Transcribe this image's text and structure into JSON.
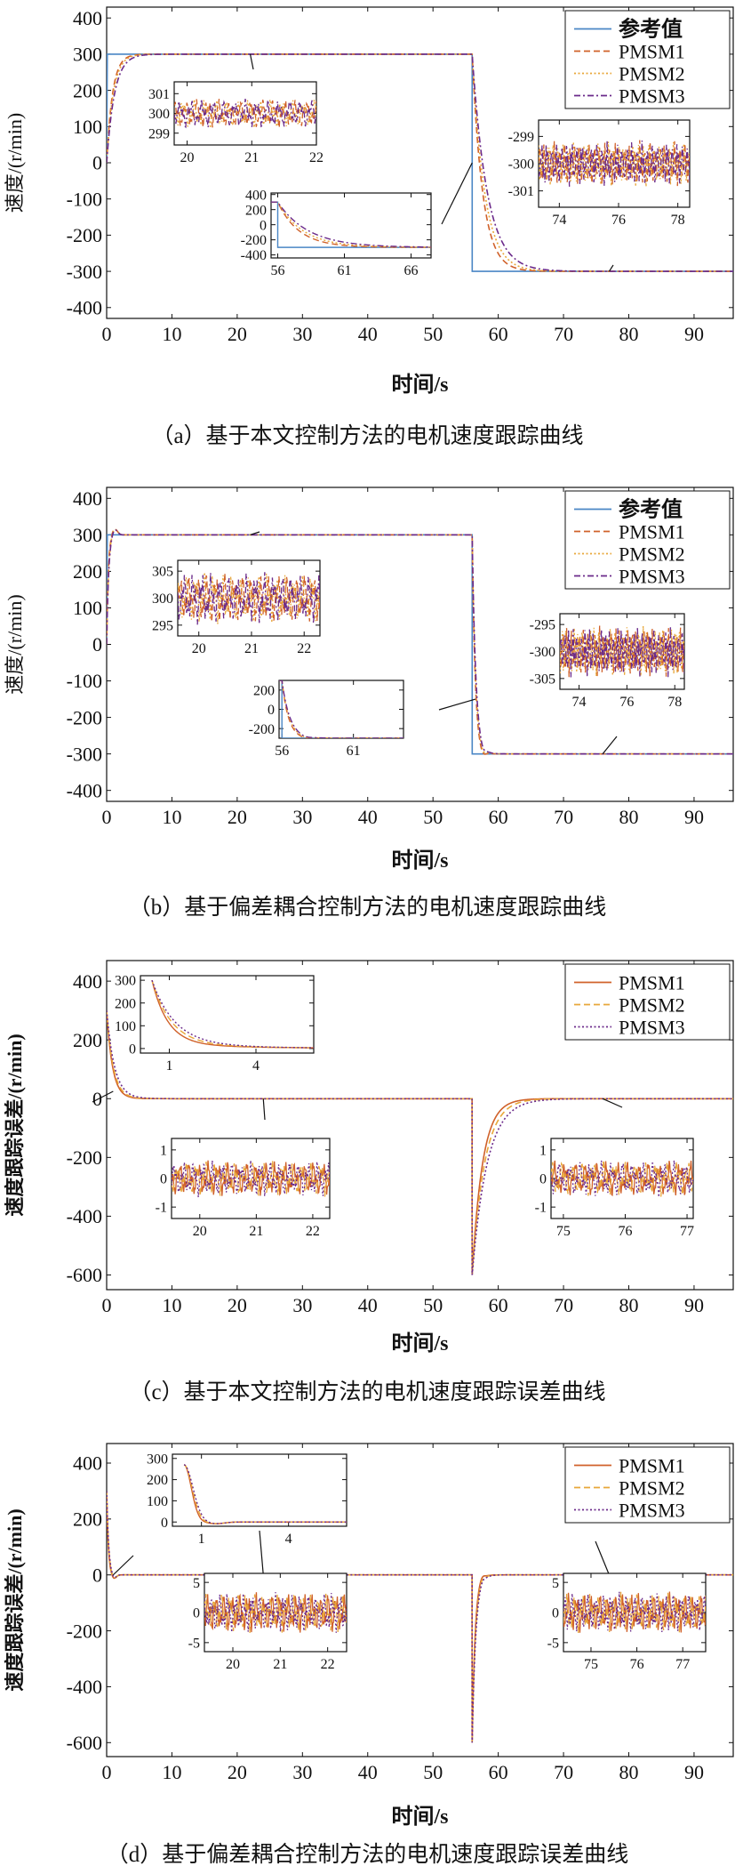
{
  "colors": {
    "ref": "#4a86c5",
    "pmsm1": "#d0612a",
    "pmsm2": "#e8a73a",
    "pmsm3": "#6b2a8a",
    "axis": "#111111"
  },
  "chart_data": [
    {
      "id": "a",
      "type": "line",
      "caption": "（a）基于本文控制方法的电机速度跟踪曲线",
      "xlabel": "时间/s",
      "ylabel": "速度/(r/min)",
      "xlim": [
        0,
        96
      ],
      "ylim": [
        -430,
        430
      ],
      "xticks": [
        0,
        10,
        20,
        30,
        40,
        50,
        60,
        70,
        80,
        90
      ],
      "yticks": [
        -400,
        -300,
        -200,
        -100,
        0,
        100,
        200,
        300,
        400
      ],
      "legend": {
        "position": "top-right",
        "entries": [
          "参考值",
          "PMSM1",
          "PMSM2",
          "PMSM3"
        ]
      },
      "series": [
        {
          "name": "参考值",
          "kind": "ref",
          "style": "solid",
          "x": [
            0,
            0.1,
            56,
            56.01,
            96
          ],
          "y": [
            0,
            300,
            300,
            -300,
            -300
          ]
        },
        {
          "name": "PMSM1",
          "kind": "exp",
          "style": "dash",
          "tau1": 0.9,
          "tau2": 1.6,
          "y0": 0,
          "y1": 300,
          "y2": -300,
          "t2": 56
        },
        {
          "name": "PMSM2",
          "kind": "exp",
          "style": "dot",
          "tau1": 1.0,
          "tau2": 1.9,
          "y0": 0,
          "y1": 300,
          "y2": -300,
          "t2": 56
        },
        {
          "name": "PMSM3",
          "kind": "exp",
          "style": "dashdot",
          "tau1": 1.2,
          "tau2": 2.3,
          "y0": 0,
          "y1": 300,
          "y2": -300,
          "t2": 56
        }
      ],
      "insets": [
        {
          "xlim": [
            19.8,
            22
          ],
          "ylim": [
            298.4,
            301.6
          ],
          "xticks": [
            20,
            21,
            22
          ],
          "yticks": [
            299,
            300,
            301
          ],
          "kind": "noise",
          "center": 300,
          "amp": 0.7
        },
        {
          "xlim": [
            55.5,
            67.5
          ],
          "ylim": [
            -440,
            420
          ],
          "xticks": [
            56,
            61,
            66
          ],
          "yticks": [
            -400,
            -200,
            0,
            200,
            400
          ],
          "kind": "drop"
        },
        {
          "xlim": [
            73.3,
            78.4
          ],
          "ylim": [
            -301.6,
            -298.4
          ],
          "xticks": [
            74,
            76,
            78
          ],
          "yticks": [
            -299,
            -300,
            -301
          ],
          "kind": "noise",
          "center": -300,
          "amp": 0.8
        }
      ]
    },
    {
      "id": "b",
      "type": "line",
      "caption": "（b）基于偏差耦合控制方法的电机速度跟踪曲线",
      "xlabel": "时间/s",
      "ylabel": "速度/(r/min)",
      "xlim": [
        0,
        96
      ],
      "ylim": [
        -430,
        430
      ],
      "xticks": [
        0,
        10,
        20,
        30,
        40,
        50,
        60,
        70,
        80,
        90
      ],
      "yticks": [
        -400,
        -300,
        -200,
        -100,
        0,
        100,
        200,
        300,
        400
      ],
      "legend": {
        "position": "top-right",
        "entries": [
          "参考值",
          "PMSM1",
          "PMSM2",
          "PMSM3"
        ]
      },
      "series": [
        {
          "name": "参考值",
          "kind": "ref",
          "style": "solid",
          "x": [
            0,
            0.1,
            56,
            56.01,
            96
          ],
          "y": [
            0,
            300,
            300,
            -300,
            -300
          ]
        },
        {
          "name": "PMSM1",
          "kind": "fast",
          "style": "dash",
          "tau1": 0.25,
          "tau2": 0.45,
          "y0": 0,
          "y1": 300,
          "y2": -300,
          "t2": 56
        },
        {
          "name": "PMSM2",
          "kind": "fast",
          "style": "dot",
          "tau1": 0.28,
          "tau2": 0.5,
          "y0": 0,
          "y1": 300,
          "y2": -300,
          "t2": 56
        },
        {
          "name": "PMSM3",
          "kind": "fast",
          "style": "dashdot",
          "tau1": 0.3,
          "tau2": 0.55,
          "y0": 0,
          "y1": 300,
          "y2": -300,
          "t2": 56
        }
      ],
      "insets": [
        {
          "xlim": [
            19.6,
            22.3
          ],
          "ylim": [
            293,
            307
          ],
          "xticks": [
            20,
            21,
            22
          ],
          "yticks": [
            295,
            300,
            305
          ],
          "kind": "noise",
          "center": 300,
          "amp": 4.5
        },
        {
          "xlim": [
            55.8,
            64.5
          ],
          "ylim": [
            -300,
            300
          ],
          "xticks": [
            56,
            61
          ],
          "yticks": [
            -200,
            0,
            200
          ],
          "kind": "drop-fast"
        },
        {
          "xlim": [
            73.2,
            78.4
          ],
          "ylim": [
            -307,
            -293
          ],
          "xticks": [
            74,
            76,
            78
          ],
          "yticks": [
            -295,
            -300,
            -305
          ],
          "kind": "noise",
          "center": -300,
          "amp": 4.5
        }
      ]
    },
    {
      "id": "c",
      "type": "line",
      "caption": "（c）基于本文控制方法的电机速度跟踪误差曲线",
      "xlabel": "时间/s",
      "ylabel": "速度跟踪误差/(r/min)",
      "xlim": [
        0,
        96
      ],
      "ylim": [
        -650,
        470
      ],
      "xticks": [
        0,
        10,
        20,
        30,
        40,
        50,
        60,
        70,
        80,
        90
      ],
      "yticks": [
        -600,
        -400,
        -200,
        0,
        200,
        400
      ],
      "legend": {
        "position": "top-right",
        "entries": [
          "PMSM1",
          "PMSM2",
          "PMSM3"
        ]
      },
      "series": [
        {
          "name": "PMSM1",
          "kind": "err",
          "style": "solid",
          "tau1": 0.9,
          "tau2": 1.6,
          "e0": 300,
          "e2": -600,
          "t2": 56
        },
        {
          "name": "PMSM2",
          "kind": "err",
          "style": "dash",
          "tau1": 1.0,
          "tau2": 1.9,
          "e0": 300,
          "e2": -600,
          "t2": 56
        },
        {
          "name": "PMSM3",
          "kind": "err",
          "style": "dot",
          "tau1": 1.2,
          "tau2": 2.3,
          "e0": 300,
          "e2": -600,
          "t2": 56
        }
      ],
      "insets": [
        {
          "xlim": [
            0,
            6
          ],
          "ylim": [
            -20,
            320
          ],
          "xticks": [
            1,
            4
          ],
          "yticks": [
            0,
            100,
            200,
            300
          ],
          "kind": "err-start"
        },
        {
          "xlim": [
            19.5,
            22.3
          ],
          "ylim": [
            -1.4,
            1.4
          ],
          "xticks": [
            20,
            21,
            22
          ],
          "yticks": [
            -1,
            0,
            1
          ],
          "kind": "noise",
          "center": 0,
          "amp": 0.6
        },
        {
          "xlim": [
            74.8,
            77.1
          ],
          "ylim": [
            -1.4,
            1.4
          ],
          "xticks": [
            75,
            76,
            77
          ],
          "yticks": [
            -1,
            0,
            1
          ],
          "kind": "noise",
          "center": 0,
          "amp": 0.6
        }
      ]
    },
    {
      "id": "d",
      "type": "line",
      "caption": "（d）基于偏差耦合控制方法的电机速度跟踪误差曲线",
      "xlabel": "时间/s",
      "ylabel": "速度跟踪误差/(r/min)",
      "xlim": [
        0,
        96
      ],
      "ylim": [
        -650,
        470
      ],
      "xticks": [
        0,
        10,
        20,
        30,
        40,
        50,
        60,
        70,
        80,
        90
      ],
      "yticks": [
        -600,
        -400,
        -200,
        0,
        200,
        400
      ],
      "legend": {
        "position": "top-right",
        "entries": [
          "PMSM1",
          "PMSM2",
          "PMSM3"
        ]
      },
      "series": [
        {
          "name": "PMSM1",
          "kind": "err-fast",
          "style": "solid",
          "tau1": 0.25,
          "tau2": 0.45,
          "e0": 300,
          "e2": -600,
          "t2": 56
        },
        {
          "name": "PMSM2",
          "kind": "err-fast",
          "style": "dash",
          "tau1": 0.28,
          "tau2": 0.5,
          "e0": 300,
          "e2": -600,
          "t2": 56
        },
        {
          "name": "PMSM3",
          "kind": "err-fast",
          "style": "dot",
          "tau1": 0.3,
          "tau2": 0.55,
          "e0": 300,
          "e2": -600,
          "t2": 56
        }
      ],
      "insets": [
        {
          "xlim": [
            0,
            6
          ],
          "ylim": [
            -20,
            320
          ],
          "xticks": [
            1,
            4
          ],
          "yticks": [
            0,
            100,
            200,
            300
          ],
          "kind": "err-start-fast"
        },
        {
          "xlim": [
            19.4,
            22.4
          ],
          "ylim": [
            -6.5,
            6.5
          ],
          "xticks": [
            20,
            21,
            22
          ],
          "yticks": [
            -5,
            0,
            5
          ],
          "kind": "noise",
          "center": 0,
          "amp": 3.2
        },
        {
          "xlim": [
            74.4,
            77.5
          ],
          "ylim": [
            -6.5,
            6.5
          ],
          "xticks": [
            75,
            76,
            77
          ],
          "yticks": [
            -5,
            0,
            5
          ],
          "kind": "noise",
          "center": 0,
          "amp": 3.2
        }
      ]
    }
  ]
}
